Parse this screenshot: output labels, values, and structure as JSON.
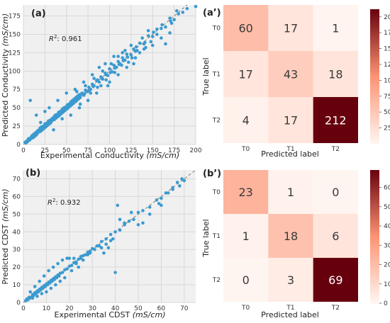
{
  "panels": {
    "a": {
      "label": "(a)",
      "r2_label": "R",
      "r2_sup": "2",
      "r2_value": ": 0.961",
      "xlabel_text": "Experimental Conductivity ",
      "xlabel_unit": "(mS/cm)",
      "ylabel_text": "Predicted Conductivity ",
      "ylabel_unit": "(mS/cm)"
    },
    "b": {
      "label": "(b)",
      "r2_label": "R",
      "r2_sup": "2",
      "r2_value": ": 0.932",
      "xlabel_text": "Experimental CDST ",
      "xlabel_unit": "(mS/cm)",
      "ylabel_text": "Predicted CDST ",
      "ylabel_unit": "(mS/cm)"
    },
    "a_prime": {
      "label": "(a’)",
      "xlabel": "Predicted label",
      "ylabel": "True label"
    },
    "b_prime": {
      "label": "(b’)",
      "xlabel": "Predicted label",
      "ylabel": "True label"
    }
  },
  "colors": {
    "scatter": "#3b9ad0",
    "diagonal": "#7a7a7a",
    "cm_low": "#fff5f0",
    "cm_high": "#67000d",
    "text_dark": "#3a3a3a",
    "text_light": "#ffffff"
  },
  "chart_data": [
    {
      "type": "scatter",
      "xlim": [
        0,
        200
      ],
      "ylim": [
        0,
        190
      ],
      "xticks": [
        0,
        25,
        50,
        75,
        100,
        125,
        150,
        175,
        200
      ],
      "yticks": [
        0,
        25,
        50,
        75,
        100,
        125,
        150,
        175
      ],
      "grid": true,
      "diagonal": true,
      "points": [
        [
          2,
          3
        ],
        [
          4,
          5
        ],
        [
          5,
          4
        ],
        [
          6,
          8
        ],
        [
          8,
          7
        ],
        [
          9,
          10
        ],
        [
          10,
          12
        ],
        [
          11,
          10
        ],
        [
          12,
          14
        ],
        [
          13,
          11
        ],
        [
          14,
          16
        ],
        [
          15,
          13
        ],
        [
          16,
          15
        ],
        [
          17,
          19
        ],
        [
          18,
          17
        ],
        [
          19,
          22
        ],
        [
          20,
          18
        ],
        [
          21,
          24
        ],
        [
          22,
          20
        ],
        [
          23,
          25
        ],
        [
          24,
          22
        ],
        [
          25,
          28
        ],
        [
          26,
          24
        ],
        [
          27,
          29
        ],
        [
          28,
          26
        ],
        [
          29,
          32
        ],
        [
          30,
          28
        ],
        [
          31,
          33
        ],
        [
          32,
          30
        ],
        [
          33,
          35
        ],
        [
          34,
          33
        ],
        [
          35,
          37
        ],
        [
          36,
          34
        ],
        [
          37,
          40
        ],
        [
          38,
          36
        ],
        [
          39,
          41
        ],
        [
          40,
          38
        ],
        [
          41,
          44
        ],
        [
          42,
          40
        ],
        [
          43,
          45
        ],
        [
          44,
          42
        ],
        [
          45,
          48
        ],
        [
          46,
          44
        ],
        [
          47,
          50
        ],
        [
          48,
          46
        ],
        [
          49,
          51
        ],
        [
          50,
          48
        ],
        [
          51,
          54
        ],
        [
          52,
          50
        ],
        [
          53,
          55
        ],
        [
          54,
          52
        ],
        [
          55,
          58
        ],
        [
          56,
          54
        ],
        [
          57,
          60
        ],
        [
          58,
          56
        ],
        [
          59,
          62
        ],
        [
          60,
          58
        ],
        [
          61,
          64
        ],
        [
          62,
          60
        ],
        [
          63,
          66
        ],
        [
          64,
          62
        ],
        [
          65,
          68
        ],
        [
          66,
          64
        ],
        [
          68,
          70
        ],
        [
          70,
          67
        ],
        [
          72,
          74
        ],
        [
          74,
          72
        ],
        [
          76,
          78
        ],
        [
          78,
          75
        ],
        [
          80,
          82
        ],
        [
          82,
          80
        ],
        [
          85,
          87
        ],
        [
          88,
          85
        ],
        [
          90,
          92
        ],
        [
          92,
          89
        ],
        [
          95,
          97
        ],
        [
          98,
          94
        ],
        [
          100,
          103
        ],
        [
          103,
          99
        ],
        [
          105,
          108
        ],
        [
          108,
          105
        ],
        [
          110,
          113
        ],
        [
          112,
          110
        ],
        [
          115,
          118
        ],
        [
          118,
          115
        ],
        [
          120,
          123
        ],
        [
          125,
          122
        ],
        [
          128,
          130
        ],
        [
          130,
          127
        ],
        [
          135,
          138
        ],
        [
          140,
          137
        ],
        [
          145,
          148
        ],
        [
          150,
          147
        ],
        [
          155,
          157
        ],
        [
          160,
          158
        ],
        [
          170,
          172
        ],
        [
          180,
          178
        ],
        [
          200,
          188
        ],
        [
          8,
          60
        ],
        [
          15,
          40
        ],
        [
          20,
          30
        ],
        [
          25,
          45
        ],
        [
          30,
          50
        ],
        [
          35,
          20
        ],
        [
          40,
          60
        ],
        [
          45,
          35
        ],
        [
          50,
          70
        ],
        [
          55,
          40
        ],
        [
          60,
          75
        ],
        [
          65,
          50
        ],
        [
          70,
          85
        ],
        [
          75,
          60
        ],
        [
          80,
          95
        ],
        [
          85,
          70
        ],
        [
          88,
          105
        ],
        [
          90,
          80
        ],
        [
          95,
          110
        ],
        [
          100,
          85
        ],
        [
          105,
          120
        ],
        [
          110,
          95
        ],
        [
          115,
          125
        ],
        [
          120,
          105
        ],
        [
          125,
          135
        ],
        [
          130,
          118
        ],
        [
          140,
          130
        ],
        [
          145,
          155
        ],
        [
          150,
          135
        ],
        [
          165,
          137
        ],
        [
          170,
          152
        ],
        [
          175,
          170
        ],
        [
          128,
          110
        ],
        [
          135,
          125
        ],
        [
          62,
          72
        ],
        [
          66,
          55
        ],
        [
          72,
          80
        ],
        [
          78,
          70
        ],
        [
          82,
          90
        ],
        [
          86,
          78
        ],
        [
          92,
          100
        ],
        [
          96,
          88
        ],
        [
          98,
          80
        ],
        [
          102,
          110
        ],
        [
          106,
          98
        ],
        [
          110,
          120
        ],
        [
          114,
          108
        ],
        [
          118,
          128
        ],
        [
          122,
          112
        ],
        [
          126,
          118
        ],
        [
          132,
          128
        ],
        [
          138,
          145
        ],
        [
          142,
          132
        ],
        [
          148,
          140
        ],
        [
          155,
          150
        ],
        [
          160,
          145
        ],
        [
          165,
          160
        ],
        [
          172,
          165
        ],
        [
          178,
          182
        ],
        [
          185,
          180
        ],
        [
          190,
          185
        ],
        [
          3,
          2
        ],
        [
          7,
          6
        ],
        [
          11,
          9
        ],
        [
          16,
          18
        ],
        [
          21,
          20
        ],
        [
          26,
          27
        ],
        [
          31,
          29
        ],
        [
          36,
          38
        ],
        [
          41,
          39
        ],
        [
          46,
          47
        ],
        [
          51,
          49
        ],
        [
          56,
          57
        ],
        [
          61,
          59
        ],
        [
          66,
          67
        ],
        [
          71,
          69
        ],
        [
          76,
          73
        ],
        [
          81,
          79
        ],
        [
          86,
          88
        ],
        [
          91,
          90
        ],
        [
          96,
          95
        ],
        [
          101,
          98
        ],
        [
          106,
          104
        ],
        [
          111,
          109
        ],
        [
          116,
          114
        ],
        [
          121,
          119
        ],
        [
          131,
          133
        ],
        [
          141,
          139
        ],
        [
          151,
          153
        ],
        [
          161,
          163
        ],
        [
          171,
          168
        ]
      ]
    },
    {
      "type": "heatmap",
      "x_categories": [
        "T0",
        "T1",
        "T2"
      ],
      "y_categories": [
        "T0",
        "T1",
        "T2"
      ],
      "values": [
        [
          60,
          17,
          1
        ],
        [
          17,
          43,
          18
        ],
        [
          4,
          17,
          212
        ]
      ],
      "colorbar_range": [
        0,
        212
      ],
      "colorbar_ticks": [
        25,
        50,
        75,
        100,
        125,
        150,
        175,
        200
      ]
    },
    {
      "type": "scatter",
      "xlim": [
        0,
        75
      ],
      "ylim": [
        0,
        75
      ],
      "xticks": [
        0,
        10,
        20,
        30,
        40,
        50,
        60,
        70
      ],
      "yticks": [
        0,
        10,
        20,
        30,
        40,
        50,
        60,
        70
      ],
      "grid": true,
      "diagonal": true,
      "points": [
        [
          1,
          1
        ],
        [
          1.5,
          2
        ],
        [
          2,
          1.5
        ],
        [
          2.5,
          3
        ],
        [
          3,
          2.5
        ],
        [
          3.5,
          3
        ],
        [
          4,
          4.5
        ],
        [
          4.5,
          4
        ],
        [
          5,
          5.5
        ],
        [
          5.5,
          5
        ],
        [
          6,
          6.5
        ],
        [
          6.5,
          6
        ],
        [
          7,
          7.5
        ],
        [
          7.5,
          7
        ],
        [
          8,
          8.5
        ],
        [
          8.5,
          8
        ],
        [
          9,
          9.5
        ],
        [
          9.5,
          9
        ],
        [
          10,
          10.5
        ],
        [
          10.5,
          10
        ],
        [
          11,
          11.5
        ],
        [
          11.5,
          11
        ],
        [
          12,
          12.5
        ],
        [
          12.5,
          12
        ],
        [
          13,
          13.5
        ],
        [
          13.5,
          13
        ],
        [
          14,
          14.5
        ],
        [
          14.5,
          14
        ],
        [
          15,
          15.5
        ],
        [
          15.5,
          15
        ],
        [
          16,
          16.5
        ],
        [
          17,
          17
        ],
        [
          18,
          18.5
        ],
        [
          19,
          19
        ],
        [
          20,
          20.5
        ],
        [
          21,
          21
        ],
        [
          22,
          22.5
        ],
        [
          23,
          23
        ],
        [
          24,
          24.5
        ],
        [
          25,
          25
        ],
        [
          26,
          26.5
        ],
        [
          27,
          27
        ],
        [
          28,
          28.5
        ],
        [
          29,
          29
        ],
        [
          30,
          30.5
        ],
        [
          32,
          32
        ],
        [
          34,
          34.5
        ],
        [
          36,
          36
        ],
        [
          38,
          38.5
        ],
        [
          40,
          40
        ],
        [
          42,
          41
        ],
        [
          44,
          45
        ],
        [
          46,
          46
        ],
        [
          48,
          47
        ],
        [
          50,
          51
        ],
        [
          52,
          52
        ],
        [
          55,
          54
        ],
        [
          58,
          58
        ],
        [
          60,
          59
        ],
        [
          62,
          62
        ],
        [
          65,
          64
        ],
        [
          67,
          68
        ],
        [
          70,
          69
        ],
        [
          3,
          6
        ],
        [
          4,
          2.5
        ],
        [
          5,
          9
        ],
        [
          6,
          3.5
        ],
        [
          7,
          12
        ],
        [
          8,
          5
        ],
        [
          9,
          15
        ],
        [
          10,
          6
        ],
        [
          11,
          18
        ],
        [
          12,
          8
        ],
        [
          13,
          20
        ],
        [
          14,
          10
        ],
        [
          15,
          22
        ],
        [
          16,
          12
        ],
        [
          17,
          24
        ],
        [
          18,
          14
        ],
        [
          19,
          25
        ],
        [
          20,
          25
        ],
        [
          21,
          18
        ],
        [
          22,
          25
        ],
        [
          23,
          22
        ],
        [
          24,
          20
        ],
        [
          25,
          26
        ],
        [
          26,
          24
        ],
        [
          28,
          27
        ],
        [
          29,
          28
        ],
        [
          31,
          30
        ],
        [
          33,
          32
        ],
        [
          34,
          31
        ],
        [
          35,
          28
        ],
        [
          36,
          33
        ],
        [
          37,
          31
        ],
        [
          38,
          35
        ],
        [
          39,
          36
        ],
        [
          40,
          17
        ],
        [
          41,
          55
        ],
        [
          42,
          47
        ],
        [
          44,
          44
        ],
        [
          47,
          51
        ],
        [
          50,
          44
        ],
        [
          52,
          45
        ],
        [
          55,
          50
        ],
        [
          59,
          56
        ],
        [
          60,
          55
        ],
        [
          63,
          62
        ],
        [
          65,
          65
        ],
        [
          68,
          66
        ],
        [
          69,
          70
        ]
      ]
    },
    {
      "type": "heatmap",
      "x_categories": [
        "T0",
        "T1",
        "T2"
      ],
      "y_categories": [
        "T0",
        "T1",
        "T2"
      ],
      "values": [
        [
          23,
          1,
          0
        ],
        [
          1,
          18,
          6
        ],
        [
          0,
          3,
          69
        ]
      ],
      "colorbar_range": [
        0,
        69
      ],
      "colorbar_ticks": [
        0,
        10,
        20,
        30,
        40,
        50,
        60
      ]
    }
  ]
}
